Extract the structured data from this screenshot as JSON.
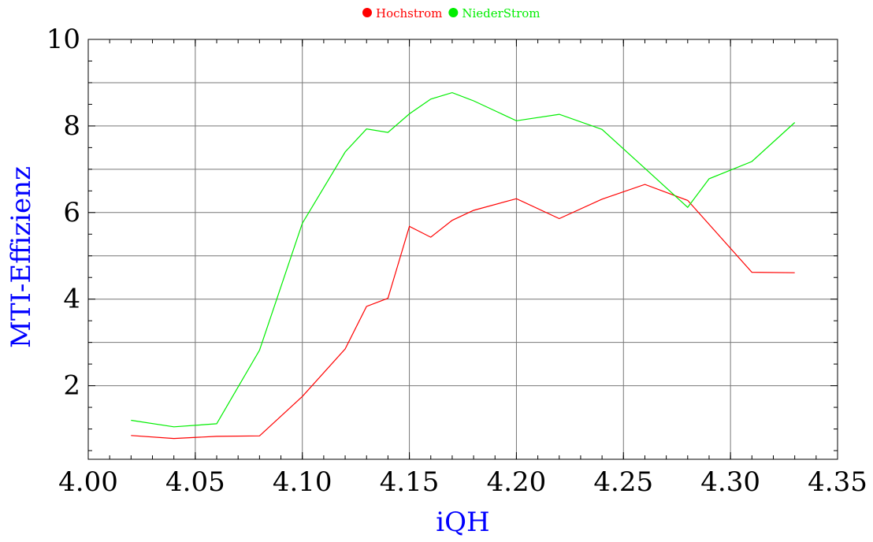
{
  "chart_data": {
    "type": "line",
    "xlabel": "iQH",
    "ylabel": "MTI-Effizienz",
    "xlim": [
      4.0,
      4.35
    ],
    "ylim": [
      0.3,
      10
    ],
    "x_ticks": [
      4.0,
      4.05,
      4.1,
      4.15,
      4.2,
      4.25,
      4.3,
      4.35
    ],
    "x_tick_labels": [
      "4.00",
      "4.05",
      "4.10",
      "4.15",
      "4.20",
      "4.25",
      "4.30",
      "4.35"
    ],
    "y_ticks": [
      2,
      4,
      6,
      8,
      10
    ],
    "y_tick_labels": [
      "2",
      "4",
      "6",
      "8",
      "10"
    ],
    "grid": true,
    "grid_x": [
      4.05,
      4.1,
      4.15,
      4.2,
      4.25,
      4.3
    ],
    "grid_y": [
      2,
      3,
      4,
      5,
      6,
      7,
      8,
      9
    ],
    "legend_position": "top-center",
    "axis_title_color": "#0000ff",
    "series": [
      {
        "name": "Hochstrom",
        "color": "#ff0000",
        "x": [
          4.02,
          4.04,
          4.06,
          4.08,
          4.1,
          4.12,
          4.13,
          4.14,
          4.15,
          4.16,
          4.17,
          4.18,
          4.2,
          4.22,
          4.24,
          4.26,
          4.28,
          4.31,
          4.33
        ],
        "y": [
          0.85,
          0.78,
          0.83,
          0.84,
          1.75,
          2.85,
          3.83,
          4.02,
          5.68,
          5.43,
          5.82,
          6.05,
          6.32,
          5.86,
          6.31,
          6.65,
          6.28,
          4.62,
          4.61
        ]
      },
      {
        "name": "NiederStrom",
        "color": "#00ee00",
        "x": [
          4.02,
          4.04,
          4.06,
          4.08,
          4.1,
          4.12,
          4.13,
          4.14,
          4.15,
          4.16,
          4.17,
          4.18,
          4.2,
          4.22,
          4.24,
          4.26,
          4.28,
          4.29,
          4.31,
          4.33
        ],
        "y": [
          1.2,
          1.05,
          1.12,
          2.82,
          5.75,
          7.4,
          7.93,
          7.85,
          8.28,
          8.62,
          8.77,
          8.58,
          8.12,
          8.27,
          7.92,
          7.02,
          6.12,
          6.78,
          7.18,
          8.08
        ]
      }
    ]
  }
}
